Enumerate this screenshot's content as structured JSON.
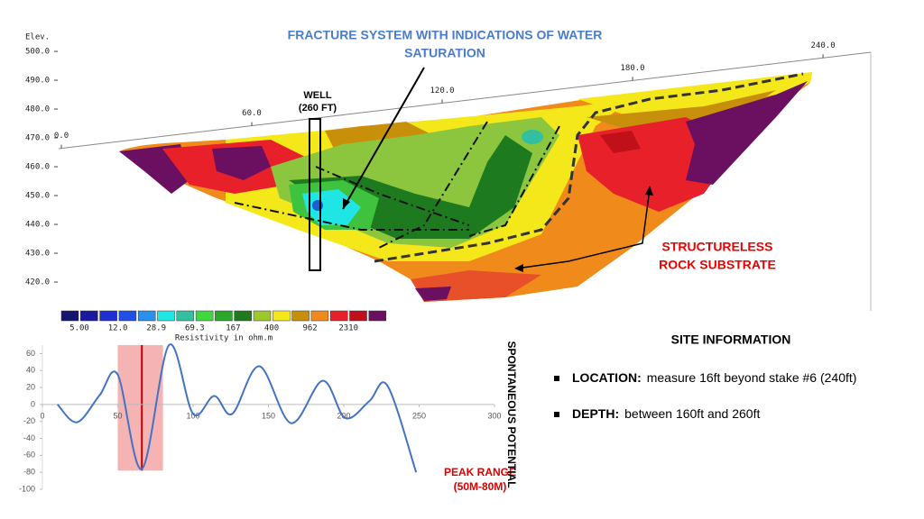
{
  "header": {
    "title_lines": [
      "FRACTURE SYSTEM WITH INDICATIONS OF WATER",
      "SATURATION"
    ]
  },
  "section": {
    "elev_label": "Elev.",
    "elev_ticks": [
      {
        "value": 500,
        "label": "500.0"
      },
      {
        "value": 490,
        "label": "490.0"
      },
      {
        "value": 480,
        "label": "480.0"
      },
      {
        "value": 470,
        "label": "470.0"
      },
      {
        "value": 460,
        "label": "460.0"
      },
      {
        "value": 450,
        "label": "450.0"
      },
      {
        "value": 440,
        "label": "440.0"
      },
      {
        "value": 430,
        "label": "430.0"
      },
      {
        "value": 420,
        "label": "420.0"
      }
    ],
    "dist_ticks": [
      {
        "value": 0,
        "label": "0.0"
      },
      {
        "value": 60,
        "label": "60.0"
      },
      {
        "value": 120,
        "label": "120.0"
      },
      {
        "value": 180,
        "label": "180.0"
      },
      {
        "value": 240,
        "label": "240.0"
      }
    ],
    "well_label_lines": [
      "WELL",
      "(260 FT)"
    ],
    "substrate_label_lines": [
      "STRUCTURELESS",
      "ROCK SUBSTRATE"
    ]
  },
  "legend": {
    "colors": [
      "#14146e",
      "#1a1aa0",
      "#1f2fd0",
      "#2050e8",
      "#2a90f0",
      "#1fe5e5",
      "#33c0a0",
      "#3fd83f",
      "#2aa82a",
      "#1e7a1e",
      "#9cc82a",
      "#f4e81a",
      "#c8900a",
      "#f08a1a",
      "#e8202a",
      "#c0101a",
      "#6b1060"
    ],
    "labels": [
      "5.00",
      "12.0",
      "28.9",
      "69.3",
      "167",
      "400",
      "962",
      "2310"
    ],
    "title": "Resistivity in ohm.m"
  },
  "chart_data": {
    "type": "line",
    "y_axis_label": "SPONTANEOUS POTENTIAL",
    "x": [
      10,
      23,
      38,
      50,
      66,
      84,
      100,
      114,
      126,
      144,
      165,
      186,
      201,
      217,
      229,
      248
    ],
    "series": [
      {
        "color": "#4472c4",
        "values": [
          0,
          -21,
          11,
          35,
          -76,
          70,
          -11,
          10,
          -11,
          45,
          -22,
          28,
          -16,
          4,
          22,
          -80
        ]
      }
    ],
    "xlim": [
      0,
      300
    ],
    "xticks": [
      0,
      50,
      100,
      150,
      200,
      250,
      300
    ],
    "ylim": [
      -100,
      70
    ],
    "yticks": [
      -100,
      -80,
      -60,
      -40,
      -20,
      0,
      20,
      40,
      60
    ],
    "highlight_range": [
      50,
      80
    ],
    "highlight_color": "#f4a6a6",
    "highlight_line": 66,
    "highlight_line_color": "#c00000",
    "annotation_lines": [
      "PEAK RANGE",
      "(50M-80M)"
    ]
  },
  "site_info": {
    "title": "SITE INFORMATION",
    "items": [
      {
        "label": "LOCATION:",
        "text": "measure 16ft beyond stake #6 (240ft)"
      },
      {
        "label": "DEPTH:",
        "text": "between 160ft and 260ft"
      }
    ]
  }
}
